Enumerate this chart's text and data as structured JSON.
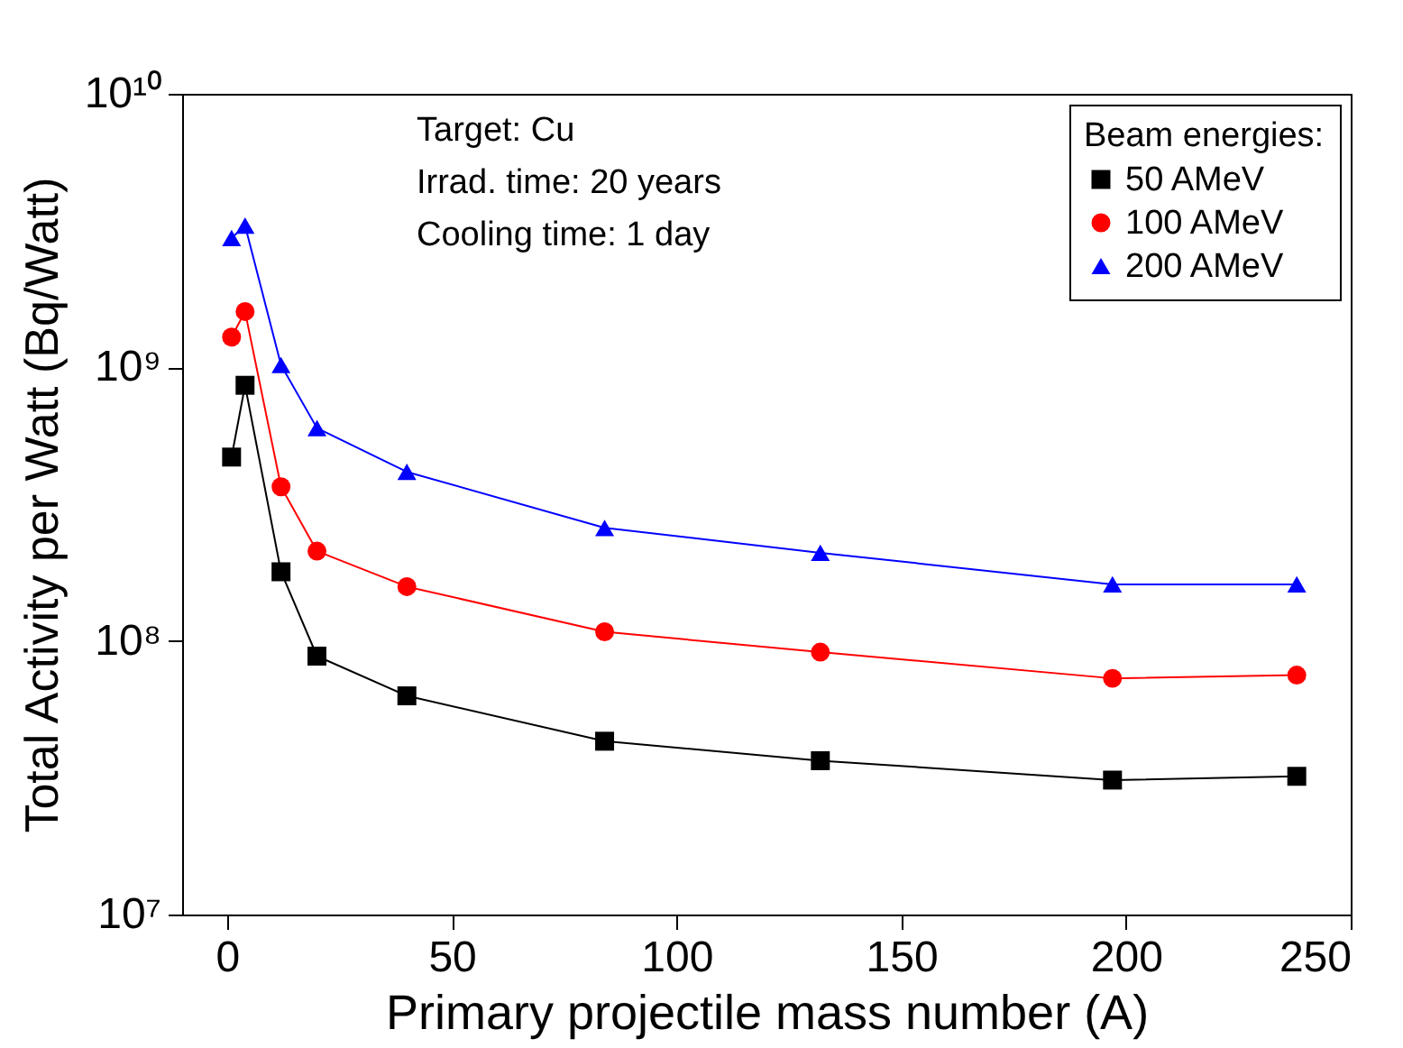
{
  "chart_data": {
    "type": "line",
    "xlabel": "Primary projectile mass number (A)",
    "ylabel": "Total Activity per Watt (Bq/Watt)",
    "legend_title": "Beam energies:",
    "annotations": [
      "Target: Cu",
      "Irrad. time: 20 years",
      "Cooling time: 1 day"
    ],
    "x": [
      1,
      4,
      12,
      20,
      40,
      84,
      132,
      197,
      238
    ],
    "series": [
      {
        "name": "50 AMeV",
        "color": "#000000",
        "marker": "square",
        "values": [
          470000000,
          860000000,
          179000000,
          88000000,
          63000000,
          43000000,
          36500000,
          31000000,
          32000000
        ]
      },
      {
        "name": "100 AMeV",
        "color": "#ff0000",
        "marker": "circle",
        "values": [
          1290000000,
          1600000000,
          366000000,
          213000000,
          158000000,
          108000000,
          91000000,
          73000000,
          75000000
        ]
      },
      {
        "name": "200 AMeV",
        "color": "#0000ff",
        "marker": "triangle",
        "values": [
          2970000000,
          3300000000,
          1020000000,
          600000000,
          415000000,
          259000000,
          210000000,
          161000000,
          161000000
        ]
      }
    ],
    "log": true,
    "xlim": [
      -10,
      250
    ],
    "xticks": [
      0,
      50,
      100,
      150,
      200,
      250
    ],
    "ylim": [
      10000000,
      10000000000
    ],
    "yticks": [
      {
        "value": 10000000,
        "label": "10⁷"
      },
      {
        "value": 100000000,
        "label": "10⁸"
      },
      {
        "value": 1000000000,
        "label": "10⁹"
      },
      {
        "value": 10000000000,
        "label": "10¹⁰"
      }
    ],
    "grid": false,
    "legend": "top right",
    "line_style": "solid"
  }
}
